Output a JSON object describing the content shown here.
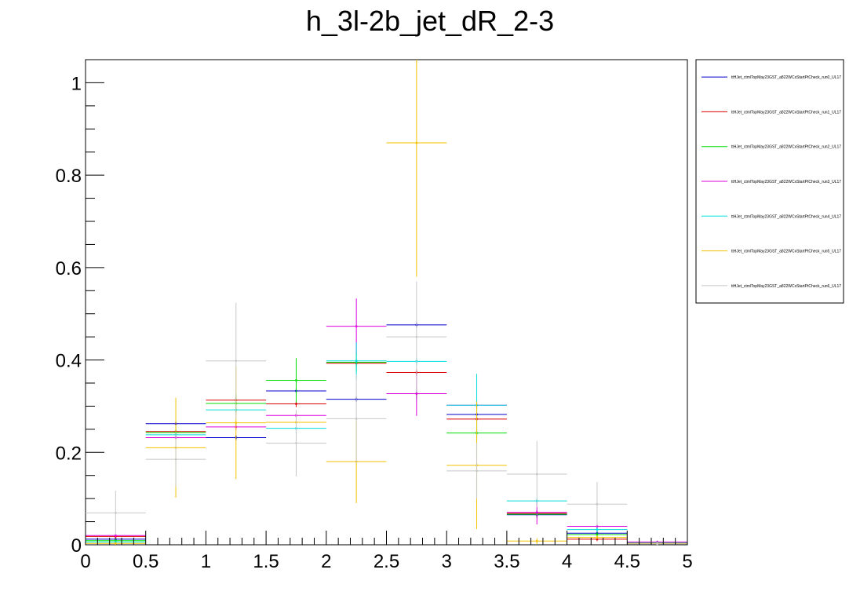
{
  "chart_data": {
    "type": "line",
    "title": "h_3l-2b_jet_dR_2-3",
    "xlabel": "",
    "ylabel": "",
    "xlim": [
      0,
      5
    ],
    "ylim": [
      0,
      1.05
    ],
    "grid": false,
    "legend_position": "top-right, outside plot",
    "bin_edges": [
      0,
      0.5,
      1,
      1.5,
      2,
      2.5,
      3,
      3.5,
      4,
      4.5,
      5
    ],
    "x_ticks": [
      "0",
      "0.5",
      "1",
      "1.5",
      "2",
      "2.5",
      "3",
      "3.5",
      "4",
      "4.5",
      "5"
    ],
    "y_ticks": [
      "0",
      "0.2",
      "0.4",
      "0.6",
      "0.8",
      "1"
    ],
    "y_tick_values": [
      0,
      0.2,
      0.4,
      0.6,
      0.8,
      1.0
    ],
    "series": [
      {
        "name": "ttHJet_ctmlTopMay23GST_a822WCxStartPtCheck_run0_UL17",
        "color": "#0000cc",
        "values": [
          0.012,
          0.262,
          0.232,
          0.333,
          0.315,
          0.476,
          0.282,
          0.065,
          0.025,
          0.005
        ],
        "errors": [
          0.004,
          0.006,
          0.006,
          0.006,
          0.006,
          0.006,
          0.006,
          0.006,
          0.004,
          0.002
        ]
      },
      {
        "name": "ttHJet_ctmlTopMay23GST_a822WCxStartPtCheck_run1_UL17",
        "color": "#dd0000",
        "values": [
          0.018,
          0.245,
          0.313,
          0.305,
          0.393,
          0.373,
          0.272,
          0.068,
          0.012,
          0.004
        ],
        "errors": [
          0.005,
          0.007,
          0.007,
          0.007,
          0.007,
          0.007,
          0.007,
          0.006,
          0.004,
          0.002
        ]
      },
      {
        "name": "ttHJet_ctmlTopMay23GST_a822WCxStartPtCheck_run2_UL17",
        "color": "#00dd00",
        "values": [
          0.009,
          0.243,
          0.306,
          0.356,
          0.395,
          0.327,
          0.242,
          0.066,
          0.022,
          0.003
        ],
        "errors": [
          0.004,
          0.012,
          0.02,
          0.048,
          0.02,
          0.012,
          0.02,
          0.008,
          0.005,
          0.002
        ]
      },
      {
        "name": "ttHJet_ctmlTopMay23GST_a822WCxStartPtCheck_run3_UL17",
        "color": "#dd00dd",
        "values": [
          0.02,
          0.232,
          0.255,
          0.28,
          0.473,
          0.327,
          0.302,
          0.07,
          0.04,
          0.006
        ],
        "errors": [
          0.004,
          0.006,
          0.006,
          0.006,
          0.06,
          0.048,
          0.01,
          0.026,
          0.006,
          0.003
        ]
      },
      {
        "name": "ttHJet_ctmlTopMay23GST_a822WCxStartPtCheck_run4_UL17",
        "color": "#00dddd",
        "values": [
          0.006,
          0.238,
          0.292,
          0.252,
          0.398,
          0.397,
          0.302,
          0.095,
          0.033,
          0.004
        ],
        "errors": [
          0.003,
          0.006,
          0.006,
          0.006,
          0.04,
          0.008,
          0.068,
          0.006,
          0.004,
          0.002
        ]
      },
      {
        "name": "ttHJet_ctmlTopMay23GST_a822WCxStartPtCheck_run5_UL17",
        "color": "#f2c200",
        "values": [
          0.003,
          0.21,
          0.264,
          0.265,
          0.18,
          0.87,
          0.172,
          0.008,
          0.016,
          0.003
        ],
        "errors": [
          0.003,
          0.108,
          0.122,
          0.006,
          0.09,
          0.29,
          0.138,
          0.006,
          0.004,
          0.002
        ]
      },
      {
        "name": "ttHJet_ctmlTopMay23GST_a822WCxStartPtCheck_run6_UL17",
        "color": "#c8c8c8",
        "values": [
          0.069,
          0.185,
          0.398,
          0.22,
          0.273,
          0.45,
          0.16,
          0.153,
          0.088,
          0.002
        ],
        "errors": [
          0.048,
          0.06,
          0.126,
          0.072,
          0.096,
          0.12,
          0.06,
          0.072,
          0.048,
          0.002
        ]
      }
    ]
  }
}
